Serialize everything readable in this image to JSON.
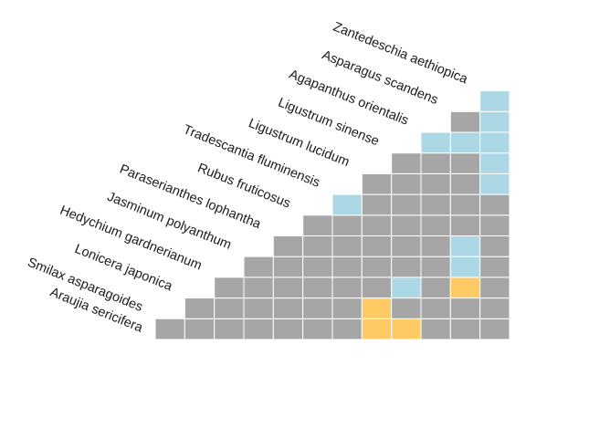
{
  "chart_data": {
    "type": "heatmap",
    "title": "",
    "xlabel": "",
    "ylabel": "",
    "legend": "none",
    "grid": true,
    "layout": "lower-triangular (staircase)",
    "species": [
      "Araujia sericifera",
      "Smilax asparagoides",
      "Lonicera japonica",
      "Hedychium gardnerianum",
      "Jasminum polyanthum",
      "Paraserianthes lophantha",
      "Rubus fruticosus",
      "Tradescantia fluminensis",
      "Ligustrum lucidum",
      "Ligustrum sinense",
      "Agapanthus orientalis",
      "Asparagus scandens",
      "Zantedeschia aethiopica"
    ],
    "colors": {
      "grey": "#a6a6a6",
      "blue": "#acd8e6",
      "orange": "#ffc964",
      "gridline": "#ffffff"
    },
    "matrix": [
      [
        "grey",
        "grey",
        "grey",
        "grey",
        "grey",
        "grey",
        "grey",
        "orange",
        "orange",
        "grey",
        "grey",
        "grey"
      ],
      [
        "grey",
        "grey",
        "grey",
        "grey",
        "grey",
        "grey",
        "orange",
        "grey",
        "grey",
        "grey",
        "grey"
      ],
      [
        "grey",
        "grey",
        "grey",
        "grey",
        "grey",
        "grey",
        "blue",
        "grey",
        "orange",
        "grey"
      ],
      [
        "grey",
        "grey",
        "grey",
        "grey",
        "grey",
        "grey",
        "grey",
        "blue",
        "grey"
      ],
      [
        "grey",
        "grey",
        "grey",
        "grey",
        "grey",
        "grey",
        "blue",
        "grey"
      ],
      [
        "grey",
        "grey",
        "grey",
        "grey",
        "grey",
        "grey",
        "grey"
      ],
      [
        "blue",
        "grey",
        "grey",
        "grey",
        "grey",
        "grey"
      ],
      [
        "grey",
        "grey",
        "grey",
        "grey",
        "blue"
      ],
      [
        "grey",
        "grey",
        "grey",
        "blue"
      ],
      [
        "blue",
        "blue",
        "blue"
      ],
      [
        "grey",
        "blue"
      ],
      [
        "blue"
      ]
    ]
  }
}
